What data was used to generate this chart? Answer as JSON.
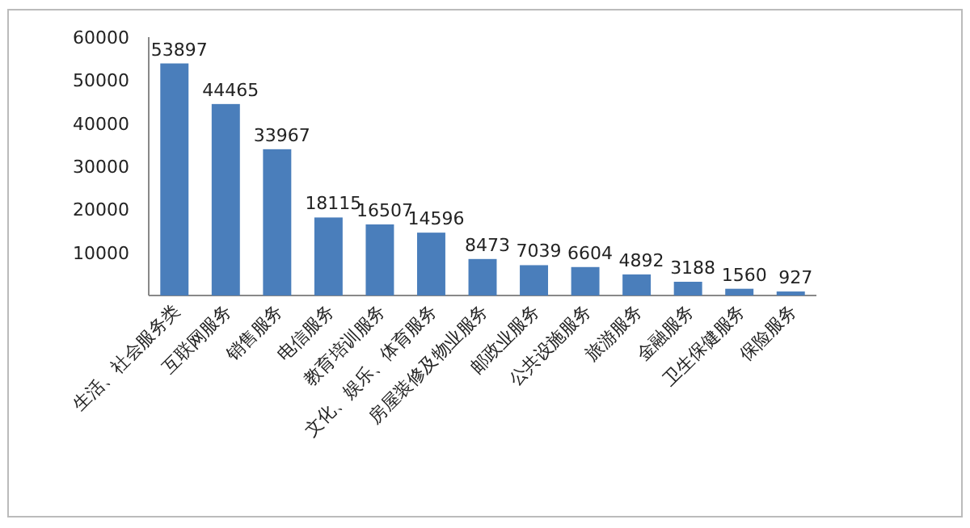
{
  "chart_data": {
    "type": "bar",
    "categories": [
      "生活、社会服务类",
      "互联网服务",
      "销售服务",
      "电信服务",
      "教育培训服务",
      "文化、娱乐、体育服务",
      "房屋装修及物业服务",
      "邮政业服务",
      "公共设施服务",
      "旅游服务",
      "金融服务",
      "卫生保健服务",
      "保险服务"
    ],
    "values": [
      53897,
      44465,
      33967,
      18115,
      16507,
      14596,
      8473,
      7039,
      6604,
      4892,
      3188,
      1560,
      927
    ],
    "color": "#4a7ebb",
    "ylim": [
      0,
      60000
    ],
    "yticks": [
      10000,
      20000,
      30000,
      40000,
      50000,
      60000
    ],
    "data_labels": true
  }
}
